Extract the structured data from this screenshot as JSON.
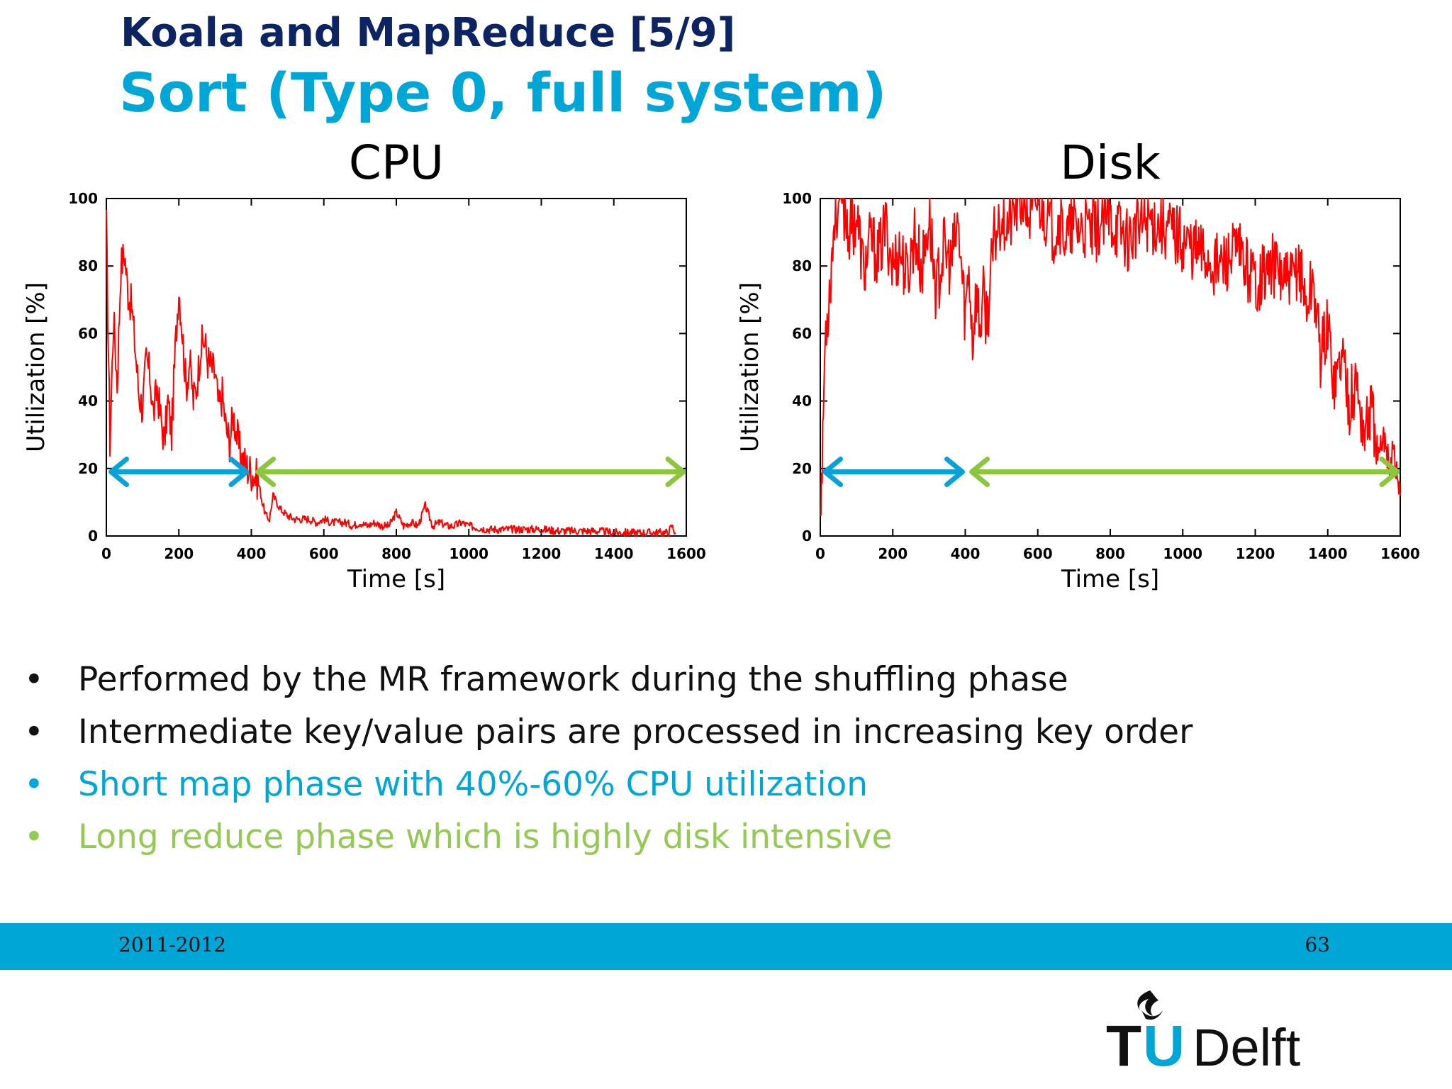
{
  "header": {
    "title": "Koala and MapReduce [5/9]",
    "subtitle": "Sort (Type 0, full system)"
  },
  "chart_data": [
    {
      "type": "line",
      "title": "CPU",
      "xlabel": "Time [s]",
      "ylabel": "Utilization [%]",
      "xlim": [
        0,
        1600
      ],
      "ylim": [
        0,
        100
      ],
      "xticks": [
        0,
        200,
        400,
        600,
        800,
        1000,
        1200,
        1400,
        1600
      ],
      "yticks": [
        0,
        20,
        40,
        60,
        80,
        100
      ],
      "grid": false,
      "line_color": "#ff0000",
      "series": [
        {
          "x": [
            0,
            10,
            20,
            30,
            40,
            50,
            60,
            70,
            80,
            90,
            100,
            110,
            120,
            130,
            140,
            150,
            160,
            170,
            180,
            190,
            200,
            210,
            220,
            230,
            240,
            250,
            260,
            270,
            280,
            290,
            300,
            310,
            320,
            330,
            340,
            350,
            360,
            370,
            380,
            390,
            400,
            410,
            420,
            430,
            440,
            450,
            460,
            470,
            480,
            490,
            500,
            520,
            540,
            560,
            580,
            600,
            620,
            640,
            660,
            680,
            700,
            720,
            740,
            760,
            780,
            800,
            820,
            840,
            860,
            880,
            900,
            920,
            940,
            960,
            980,
            1000,
            1050,
            1100,
            1150,
            1200,
            1250,
            1300,
            1350,
            1400,
            1450,
            1500,
            1550,
            1560,
            1570
          ],
          "y": [
            92,
            28,
            65,
            45,
            80,
            84,
            72,
            68,
            55,
            42,
            38,
            52,
            48,
            36,
            44,
            35,
            28,
            40,
            30,
            55,
            74,
            60,
            44,
            52,
            40,
            45,
            56,
            58,
            52,
            50,
            48,
            38,
            42,
            32,
            28,
            36,
            30,
            24,
            22,
            20,
            19,
            18,
            16,
            10,
            6,
            5,
            12,
            10,
            8,
            7,
            6,
            5,
            5,
            5,
            4,
            5,
            4,
            4,
            4,
            3,
            4,
            3,
            4,
            3,
            3,
            7,
            3,
            4,
            3,
            9,
            3,
            4,
            3,
            3,
            4,
            3,
            2,
            2,
            2,
            2,
            1.5,
            1.5,
            1.5,
            1,
            1,
            1,
            1,
            3,
            1
          ]
        }
      ],
      "annotations": [
        {
          "type": "double-arrow",
          "color": "#0aa0d8",
          "x_start": 5,
          "x_end": 395,
          "y": 19
        },
        {
          "type": "double-arrow",
          "color": "#8cc63f",
          "x_start": 410,
          "x_end": 1600,
          "y": 19
        }
      ]
    },
    {
      "type": "line",
      "title": "Disk",
      "xlabel": "Time [s]",
      "ylabel": "Utilization [%]",
      "xlim": [
        0,
        1600
      ],
      "ylim": [
        0,
        100
      ],
      "xticks": [
        0,
        200,
        400,
        600,
        800,
        1000,
        1200,
        1400,
        1600
      ],
      "yticks": [
        0,
        20,
        40,
        60,
        80,
        100
      ],
      "grid": false,
      "line_color": "#ff0000",
      "series": [
        {
          "x": [
            0,
            5,
            10,
            15,
            25,
            40,
            60,
            80,
            100,
            120,
            140,
            160,
            180,
            200,
            220,
            240,
            260,
            280,
            300,
            320,
            340,
            360,
            380,
            400,
            410,
            420,
            430,
            440,
            450,
            460,
            480,
            500,
            520,
            540,
            560,
            580,
            600,
            620,
            640,
            660,
            680,
            700,
            750,
            800,
            850,
            900,
            950,
            1000,
            1050,
            1100,
            1150,
            1200,
            1250,
            1300,
            1320,
            1340,
            1360,
            1380,
            1400,
            1420,
            1440,
            1460,
            1480,
            1500,
            1520,
            1540,
            1560,
            1570,
            1580,
            1590,
            1600
          ],
          "y": [
            8,
            20,
            45,
            62,
            72,
            96,
            100,
            90,
            95,
            78,
            88,
            82,
            92,
            80,
            85,
            76,
            90,
            78,
            95,
            72,
            85,
            80,
            92,
            65,
            80,
            58,
            72,
            62,
            70,
            64,
            88,
            96,
            92,
            98,
            100,
            94,
            100,
            96,
            90,
            94,
            88,
            92,
            90,
            94,
            88,
            94,
            92,
            88,
            84,
            80,
            84,
            76,
            80,
            74,
            82,
            68,
            76,
            54,
            62,
            45,
            55,
            40,
            45,
            30,
            38,
            22,
            30,
            20,
            28,
            18,
            12
          ]
        }
      ],
      "annotations": [
        {
          "type": "double-arrow",
          "color": "#0aa0d8",
          "x_start": 5,
          "x_end": 400,
          "y": 19
        },
        {
          "type": "double-arrow",
          "color": "#8cc63f",
          "x_start": 410,
          "x_end": 1600,
          "y": 19
        }
      ]
    }
  ],
  "bullets": [
    {
      "symbol": "•",
      "text": "Performed by the MR framework during the shuffling phase",
      "color": "#111111"
    },
    {
      "symbol": "•",
      "text": "Intermediate key/value pairs are processed in increasing key order",
      "color": "#111111"
    },
    {
      "symbol": "•",
      "text": "Short map phase with 40%-60% CPU utilization",
      "color": "#00a6d6"
    },
    {
      "symbol": "•",
      "text": "Long reduce phase which is highly disk intensive",
      "color": "#94c955"
    }
  ],
  "footer": {
    "date": "2011-2012",
    "page_number": "63",
    "bar_color": "#00a6d6"
  },
  "logo": {
    "text": "TUDelft",
    "icon": "flame-icon"
  }
}
